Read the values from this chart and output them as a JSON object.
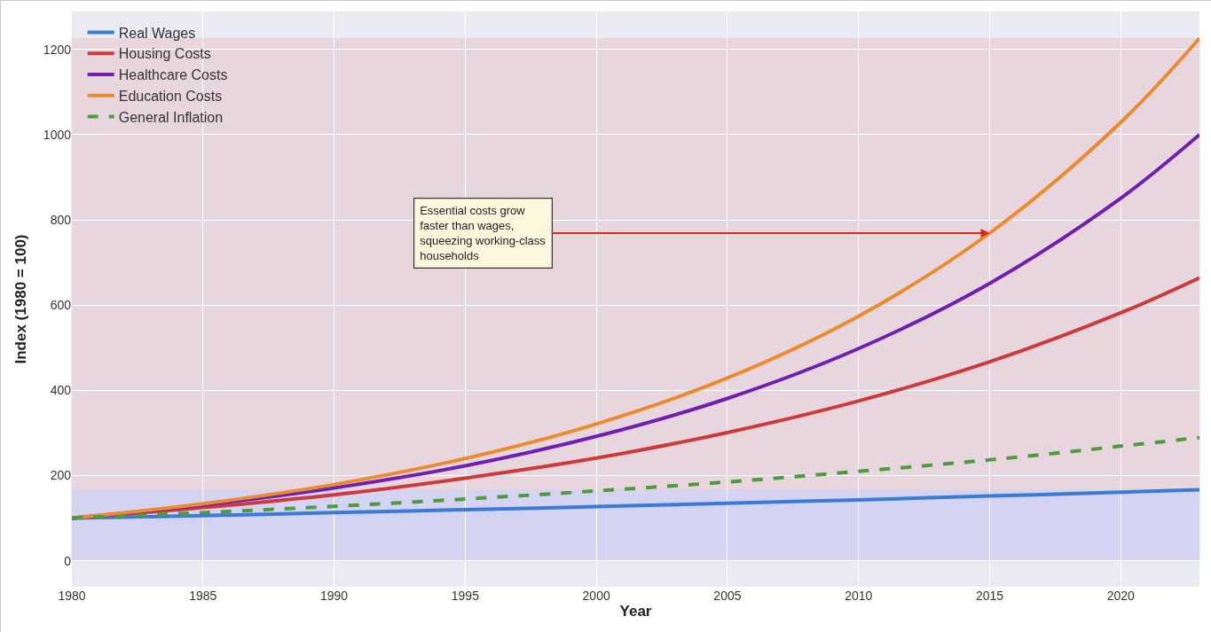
{
  "chart_data": {
    "type": "line",
    "xlabel": "Year",
    "ylabel": "Index (1980 = 100)",
    "x": [
      1980,
      1985,
      1990,
      1995,
      2000,
      2005,
      2010,
      2015,
      2020,
      2023
    ],
    "series": [
      {
        "name": "Real Wages",
        "color": "#3a7bd5",
        "values": [
          100,
          106,
          113,
          120,
          127,
          135,
          143,
          152,
          161,
          167
        ]
      },
      {
        "name": "Housing Costs",
        "color": "#cc3b3b",
        "values": [
          100,
          125,
          155,
          194,
          241,
          301,
          375,
          467,
          582,
          664
        ]
      },
      {
        "name": "Healthcare Costs",
        "color": "#7020b0",
        "values": [
          100,
          131,
          171,
          223,
          292,
          381,
          498,
          651,
          851,
          1000
        ]
      },
      {
        "name": "Education Costs",
        "color": "#ec8a2e",
        "values": [
          100,
          134,
          179,
          240,
          321,
          429,
          574,
          769,
          1029,
          1226
        ]
      },
      {
        "name": "General Inflation",
        "color": "#4e9a3e",
        "values": [
          100,
          113,
          128,
          145,
          164,
          185,
          210,
          237,
          269,
          289
        ],
        "line_style": "dashed"
      }
    ],
    "bands": [
      {
        "axis": "y",
        "from": 0,
        "to": 167,
        "color": "#d2d2f2"
      },
      {
        "axis": "y",
        "from": 167,
        "to": 1226,
        "color": "#e8d4dc"
      }
    ],
    "annotations": [
      {
        "text": "Essential costs grow\nfaster than wages,\nsqueezing working-class\nhouseholds",
        "x": 2015,
        "y": 769
      }
    ],
    "xlim": [
      1980,
      2023
    ],
    "ylim": [
      -61,
      1289
    ],
    "xticks": [
      1980,
      1985,
      1990,
      1995,
      2000,
      2005,
      2010,
      2015,
      2020
    ],
    "yticks": [
      0,
      200,
      400,
      600,
      800,
      1000,
      1200
    ],
    "grid": true,
    "legend": "top left",
    "line_style": "solid"
  }
}
